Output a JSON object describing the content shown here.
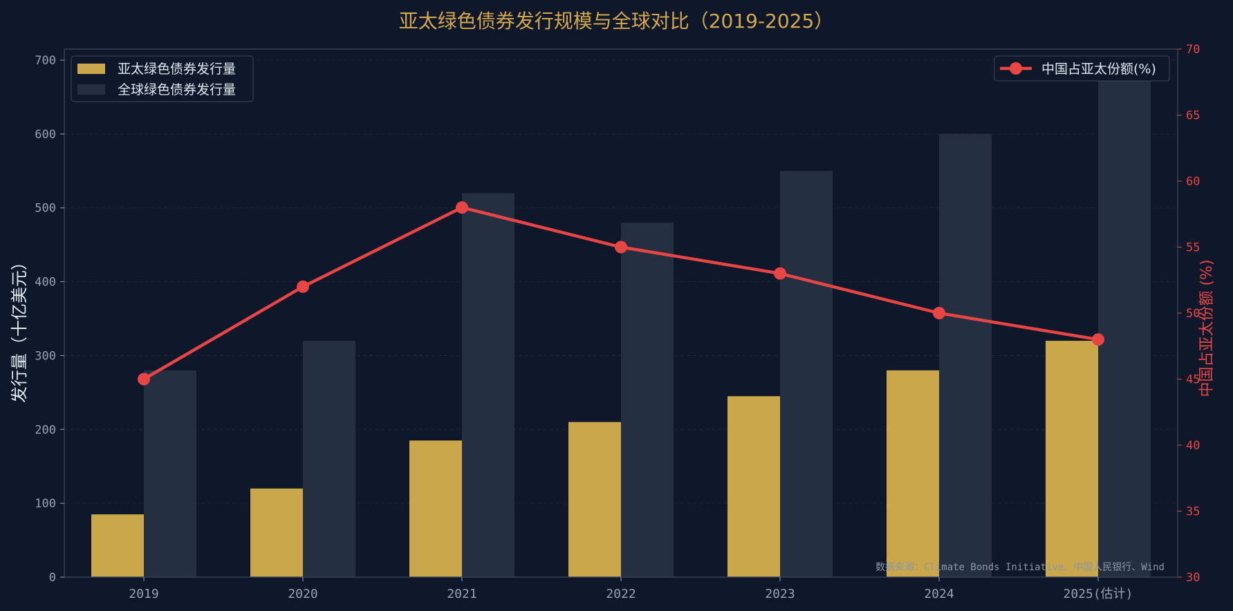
{
  "chart_data": {
    "type": "bar",
    "title": "亚太绿色债券发行规模与全球对比（2019-2025）",
    "categories": [
      "2019",
      "2020",
      "2021",
      "2022",
      "2023",
      "2024",
      "2025(估计)"
    ],
    "series": [
      {
        "name": "亚太绿色债券发行量",
        "type": "bar",
        "axis": "left",
        "color": "#c9a74a",
        "values": [
          85,
          120,
          185,
          210,
          245,
          280,
          320
        ]
      },
      {
        "name": "全球绿色债券发行量",
        "type": "bar",
        "axis": "left",
        "color": "#243042",
        "values": [
          280,
          320,
          520,
          480,
          550,
          600,
          680
        ]
      },
      {
        "name": "中国占亚太份额(%)",
        "type": "line",
        "axis": "right",
        "color": "#e84545",
        "values": [
          45,
          52,
          58,
          55,
          53,
          50,
          48
        ]
      }
    ],
    "ylabel": "发行量（十亿美元）",
    "y2label": "中国占亚太份额 (%)",
    "ylim": [
      0,
      715
    ],
    "y2lim": [
      30,
      70
    ],
    "yticks": [
      0,
      100,
      200,
      300,
      400,
      500,
      600,
      700
    ],
    "y2ticks": [
      30,
      35,
      40,
      45,
      50,
      55,
      60,
      65,
      70
    ],
    "grid": true,
    "legend_left": "top-left",
    "legend_right": "top-right",
    "source_note": "数据来源：Climate Bonds Initiative、中国人民银行、Wind",
    "colors": {
      "background": "#0f172a",
      "title": "#d4a94a",
      "axis_left": "#94a3b8",
      "axis_right": "#e84545",
      "spine": "#334155",
      "grid": "#1f2a3c"
    }
  }
}
